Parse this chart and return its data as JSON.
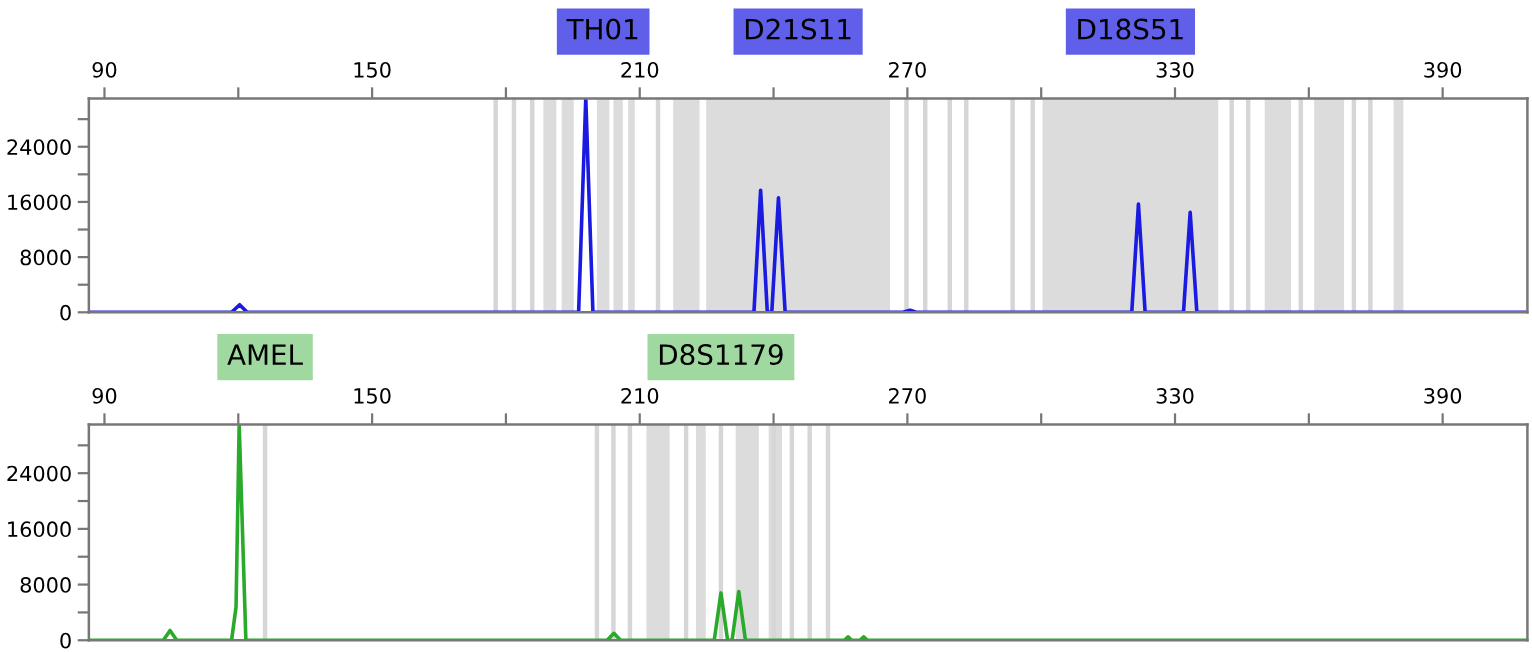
{
  "chart_data": [
    {
      "type": "line",
      "xlim": [
        86.5,
        409
      ],
      "ylim": [
        0,
        31000
      ],
      "xticks": [
        90,
        {
          "value": 120,
          "label": null
        },
        150,
        {
          "value": 180,
          "label": null
        },
        210,
        {
          "value": 240,
          "label": null
        },
        270,
        {
          "value": 300,
          "label": null
        },
        330,
        {
          "value": 360,
          "label": null
        },
        390
      ],
      "yticks": [
        0,
        {
          "value": 4000,
          "label": null
        },
        8000,
        {
          "value": 12000,
          "label": null
        },
        16000,
        {
          "value": 20000,
          "label": null
        },
        24000,
        {
          "value": 28000,
          "label": null
        }
      ],
      "grid": false,
      "marker": "none",
      "line_style": "solid",
      "series": [
        {
          "color": "#1a1ae0",
          "x": [
            87,
            118.5,
            120.3,
            122,
            196.3,
            197.9,
            199.5,
            235.6,
            237.1,
            238.6,
            239.6,
            241.1,
            242.6,
            269,
            270.6,
            272,
            320.3,
            321.8,
            323.3,
            331.9,
            333.4,
            334.9,
            409
          ],
          "values": [
            0,
            0,
            1100,
            0,
            0,
            31000,
            0,
            0,
            17700,
            0,
            0,
            16600,
            0,
            0,
            300,
            0,
            0,
            15700,
            0,
            0,
            14500,
            0,
            0
          ]
        }
      ],
      "ref_lines": [
        {
          "axis": "x",
          "value": 177.7,
          "color": "#d6d6d6"
        },
        {
          "axis": "x",
          "value": 181.8,
          "color": "#d6d6d6"
        },
        {
          "axis": "x",
          "value": 185.9,
          "color": "#d6d6d6"
        },
        {
          "axis": "x",
          "value": 214.1,
          "color": "#d6d6d6"
        },
        {
          "axis": "x",
          "value": 269.8,
          "color": "#d6d6d6"
        },
        {
          "axis": "x",
          "value": 274.0,
          "color": "#d6d6d6"
        },
        {
          "axis": "x",
          "value": 279.5,
          "color": "#d6d6d6"
        },
        {
          "axis": "x",
          "value": 283.2,
          "color": "#d6d6d6"
        },
        {
          "axis": "x",
          "value": 293.6,
          "color": "#d6d6d6"
        },
        {
          "axis": "x",
          "value": 298.1,
          "color": "#d6d6d6"
        },
        {
          "axis": "x",
          "value": 342.7,
          "color": "#d6d6d6"
        },
        {
          "axis": "x",
          "value": 346.4,
          "color": "#d6d6d6"
        },
        {
          "axis": "x",
          "value": 358.2,
          "color": "#d6d6d6"
        },
        {
          "axis": "x",
          "value": 370.1,
          "color": "#d6d6d6"
        },
        {
          "axis": "x",
          "value": 373.8,
          "color": "#d6d6d6"
        }
      ],
      "bands": [
        {
          "axis": "x",
          "from": 188.4,
          "to": 191.3,
          "color": "#dcdcdc"
        },
        {
          "axis": "x",
          "from": 192.5,
          "to": 195.2,
          "color": "#dcdcdc"
        },
        {
          "axis": "x",
          "from": 200.4,
          "to": 203.2,
          "color": "#dcdcdc",
          "label": "TH01"
        },
        {
          "axis": "x",
          "from": 204.1,
          "to": 206.2,
          "color": "#dcdcdc"
        },
        {
          "axis": "x",
          "from": 207.4,
          "to": 208.9,
          "color": "#dcdcdc"
        },
        {
          "axis": "x",
          "from": 217.5,
          "to": 223.4,
          "color": "#dcdcdc"
        },
        {
          "axis": "x",
          "from": 224.9,
          "to": 266.1,
          "color": "#dcdcdc",
          "label": "D21S11"
        },
        {
          "axis": "x",
          "from": 300.3,
          "to": 339.7,
          "color": "#dcdcdc",
          "label": "D18S51"
        },
        {
          "axis": "x",
          "from": 350.1,
          "to": 356.0,
          "color": "#dcdcdc"
        },
        {
          "axis": "x",
          "from": 361.2,
          "to": 367.9,
          "color": "#dcdcdc"
        },
        {
          "axis": "x",
          "from": 379.0,
          "to": 381.2,
          "color": "#dcdcdc"
        }
      ]
    },
    {
      "type": "line",
      "xlim": [
        86.5,
        409
      ],
      "ylim": [
        0,
        31000
      ],
      "xticks": [
        90,
        {
          "value": 120,
          "label": null
        },
        150,
        {
          "value": 180,
          "label": null
        },
        210,
        {
          "value": 240,
          "label": null
        },
        270,
        {
          "value": 300,
          "label": null
        },
        330,
        {
          "value": 360,
          "label": null
        },
        390
      ],
      "yticks": [
        0,
        {
          "value": 4000,
          "label": null
        },
        8000,
        {
          "value": 12000,
          "label": null
        },
        16000,
        {
          "value": 20000,
          "label": null
        },
        24000,
        {
          "value": 28000,
          "label": null
        }
      ],
      "grid": false,
      "marker": "none",
      "line_style": "solid",
      "series": [
        {
          "color": "#2aaa2a",
          "x": [
            87,
            103.2,
            104.7,
            106.2,
            118.5,
            119.5,
            120.2,
            121.7,
            202.7,
            204.2,
            205.7,
            226.7,
            228.2,
            229.7,
            230.7,
            232.2,
            233.7,
            255.9,
            256.7,
            257.5,
            259.4,
            260.2,
            261,
            409
          ],
          "values": [
            0,
            0,
            1400,
            0,
            0,
            4800,
            31000,
            0,
            0,
            1000,
            0,
            0,
            6800,
            0,
            0,
            7000,
            0,
            0,
            500,
            0,
            0,
            500,
            0,
            0
          ]
        }
      ],
      "ref_lines": [
        {
          "axis": "x",
          "value": 126.0,
          "color": "#d6d6d6",
          "label": "AMEL"
        },
        {
          "axis": "x",
          "value": 200.4,
          "color": "#d6d6d6"
        },
        {
          "axis": "x",
          "value": 204.1,
          "color": "#d6d6d6"
        },
        {
          "axis": "x",
          "value": 207.8,
          "color": "#d6d6d6"
        },
        {
          "axis": "x",
          "value": 220.4,
          "color": "#d6d6d6"
        },
        {
          "axis": "x",
          "value": 228.2,
          "color": "#d6d6d6",
          "label": "D8S1179"
        },
        {
          "axis": "x",
          "value": 240.1,
          "color": "#d6d6d6"
        },
        {
          "axis": "x",
          "value": 244.1,
          "color": "#d6d6d6"
        },
        {
          "axis": "x",
          "value": 248.1,
          "color": "#d6d6d6"
        },
        {
          "axis": "x",
          "value": 252.2,
          "color": "#d6d6d6"
        }
      ],
      "bands": [
        {
          "axis": "x",
          "from": 211.5,
          "to": 216.7,
          "color": "#dcdcdc"
        },
        {
          "axis": "x",
          "from": 222.6,
          "to": 224.8,
          "color": "#dcdcdc"
        },
        {
          "axis": "x",
          "from": 231.5,
          "to": 236.7,
          "color": "#dcdcdc"
        },
        {
          "axis": "x",
          "from": 238.9,
          "to": 241.9,
          "color": "#dcdcdc"
        }
      ]
    }
  ]
}
